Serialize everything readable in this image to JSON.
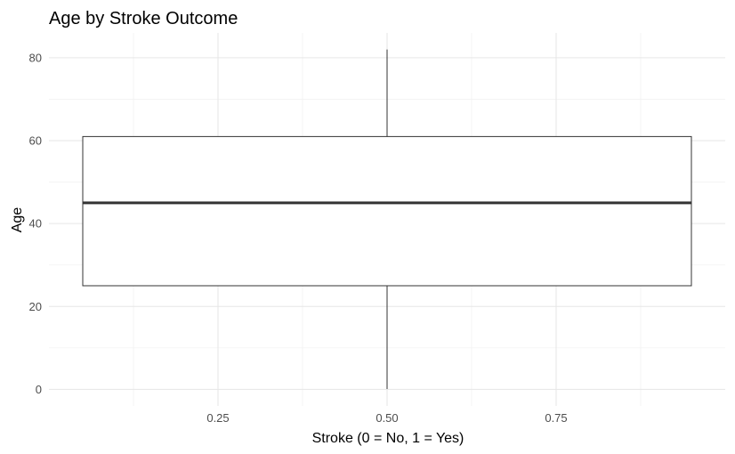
{
  "chart_data": {
    "type": "boxplot",
    "title": "Age by Stroke Outcome",
    "xlabel": "Stroke (0 = No, 1 = Yes)",
    "ylabel": "Age",
    "xlim": [
      0.0,
      1.0
    ],
    "ylim": [
      -4,
      86
    ],
    "x_ticks": [
      0.25,
      0.5,
      0.75
    ],
    "x_tick_labels": [
      "0.25",
      "0.50",
      "0.75"
    ],
    "y_ticks": [
      0,
      20,
      40,
      60,
      80
    ],
    "y_tick_labels": [
      "0",
      "20",
      "40",
      "60",
      "80"
    ],
    "grid": true,
    "boxes": [
      {
        "x": 0.5,
        "x_min": 0.05,
        "x_max": 0.95,
        "whisker_low": 0.08,
        "q1": 25,
        "median": 45,
        "q3": 61,
        "whisker_high": 82
      }
    ]
  }
}
